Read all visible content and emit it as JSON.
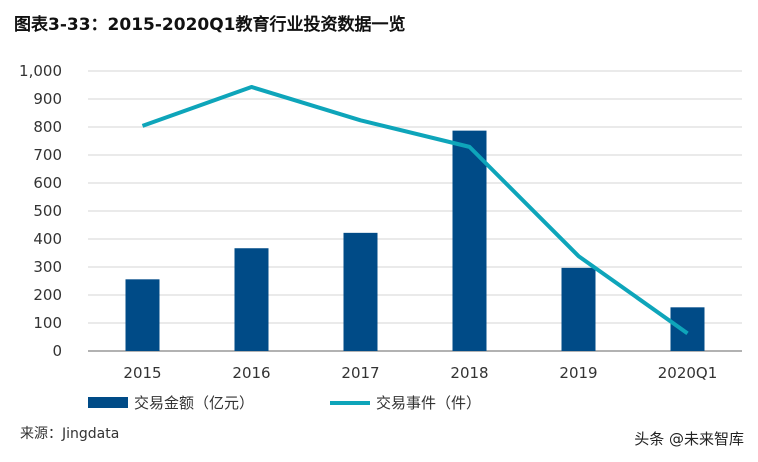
{
  "chart_data": {
    "type": "bar+line",
    "title": "图表3-33：2015-2020Q1教育行业投资数据一览",
    "categories": [
      "2015",
      "2016",
      "2017",
      "2018",
      "2019",
      "2020Q1"
    ],
    "series": [
      {
        "name": "交易金额（亿元）",
        "type": "bar",
        "color": "#004B87",
        "values": [
          256,
          367,
          422,
          787,
          297,
          156
        ]
      },
      {
        "name": "交易事件（件）",
        "type": "line",
        "color": "#0EA5BA",
        "values": [
          804,
          943,
          824,
          729,
          339,
          63
        ]
      }
    ],
    "ylim": [
      0,
      1000
    ],
    "yticks": [
      "0",
      "100",
      "200",
      "300",
      "400",
      "500",
      "600",
      "700",
      "800",
      "900",
      "1,000"
    ],
    "grid": true,
    "legend": "bottom-left"
  },
  "source": "来源：Jingdata",
  "watermark": "头条 @未来智库"
}
